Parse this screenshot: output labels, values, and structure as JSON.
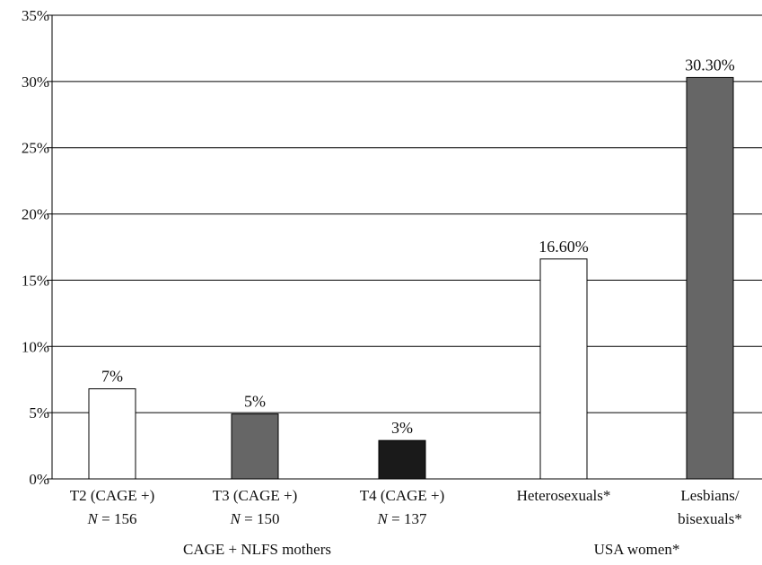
{
  "chart_data": {
    "type": "bar",
    "title": "",
    "xlabel": "",
    "ylabel": "",
    "ylim": [
      0,
      35
    ],
    "yticks": [
      "0%",
      "5%",
      "10%",
      "15%",
      "20%",
      "25%",
      "30%",
      "35%"
    ],
    "ytick_values": [
      0,
      5,
      10,
      15,
      20,
      25,
      30,
      35
    ],
    "grid": true,
    "categories": [
      {
        "line1": "T2 (CAGE +)",
        "n_prefix": "N",
        "n_rest": " = 156"
      },
      {
        "line1": "T3 (CAGE +)",
        "n_prefix": "N",
        "n_rest": " = 150"
      },
      {
        "line1": "T4 (CAGE +)",
        "n_prefix": "N",
        "n_rest": " = 137"
      },
      {
        "line1": "Heterosexuals*",
        "line2": ""
      },
      {
        "line1": "Lesbians/",
        "line2": "bisexuals*"
      }
    ],
    "values": [
      6.8,
      4.9,
      2.9,
      16.6,
      30.3
    ],
    "data_labels": [
      "7%",
      "5%",
      "3%",
      "16.60%",
      "30.30%"
    ],
    "bar_colors": [
      "#ffffff",
      "#666666",
      "#1a1a1a",
      "#ffffff",
      "#666666"
    ],
    "groups": [
      {
        "label": "CAGE + NLFS mothers",
        "categories": [
          0,
          1,
          2
        ]
      },
      {
        "label": "USA women*",
        "categories": [
          3,
          4
        ]
      }
    ]
  }
}
